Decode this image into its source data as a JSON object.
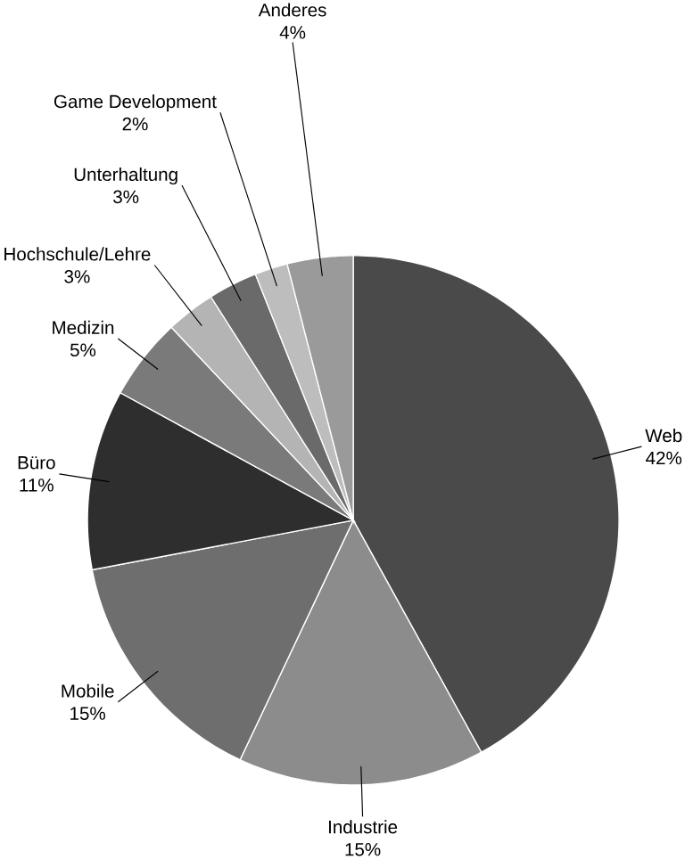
{
  "chart_data": {
    "type": "pie",
    "categories": [
      "Web",
      "Industrie",
      "Mobile",
      "Büro",
      "Medizin",
      "Hochschule/Lehre",
      "Unterhaltung",
      "Game Development",
      "Anderes"
    ],
    "values": [
      42,
      15,
      15,
      11,
      5,
      3,
      3,
      2,
      4
    ],
    "value_labels": [
      "42%",
      "15%",
      "15%",
      "11%",
      "5%",
      "3%",
      "3%",
      "2%",
      "4%"
    ],
    "colors": [
      "#4a4a4a",
      "#8c8c8c",
      "#6e6e6e",
      "#2e2e2e",
      "#7a7a7a",
      "#b4b4b4",
      "#6a6a6a",
      "#bdbdbd",
      "#9a9a9a"
    ]
  }
}
